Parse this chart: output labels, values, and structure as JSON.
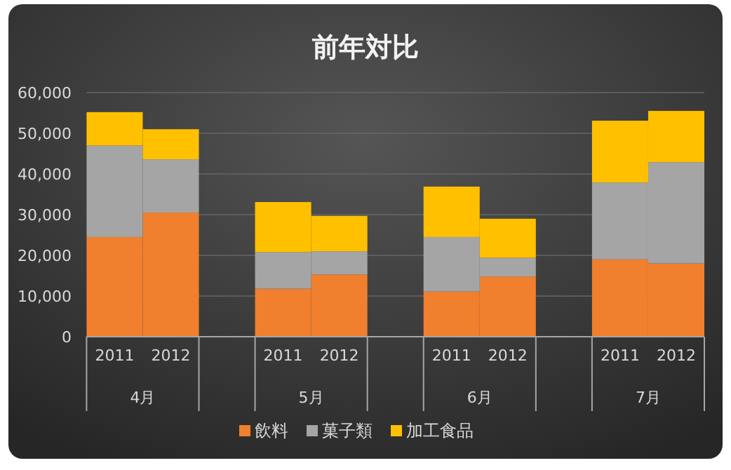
{
  "chart_data": {
    "type": "bar",
    "stacked": true,
    "title": "前年対比",
    "categories": [
      "2011",
      "2012",
      null,
      "2011",
      "2012",
      null,
      "2011",
      "2012",
      null,
      "2011",
      "2012"
    ],
    "series": [
      {
        "name": "飲料",
        "color": "#f07f2e",
        "values": [
          24500,
          30500,
          null,
          11800,
          15300,
          null,
          11100,
          14800,
          null,
          19000,
          18000
        ]
      },
      {
        "name": "菓子類",
        "color": "#a5a5a5",
        "values": [
          22500,
          13100,
          null,
          9000,
          5700,
          null,
          13400,
          4600,
          null,
          18900,
          24900
        ]
      },
      {
        "name": "加工食品",
        "color": "#ffc000",
        "values": [
          8200,
          7400,
          null,
          12300,
          8700,
          null,
          12400,
          9600,
          null,
          15200,
          12600
        ]
      }
    ],
    "ylim": [
      0,
      60000
    ],
    "yticks": [
      {
        "value": 0,
        "label": "0"
      },
      {
        "value": 10000,
        "label": "10,000"
      },
      {
        "value": 20000,
        "label": "20,000"
      },
      {
        "value": 30000,
        "label": "30,000"
      },
      {
        "value": 40000,
        "label": "40,000"
      },
      {
        "value": 50000,
        "label": "50,000"
      },
      {
        "value": 60000,
        "label": "60,000"
      }
    ],
    "grid": "y",
    "legend": "bottom",
    "annotations": [
      "4月",
      "5月",
      "6月",
      "7月"
    ]
  }
}
